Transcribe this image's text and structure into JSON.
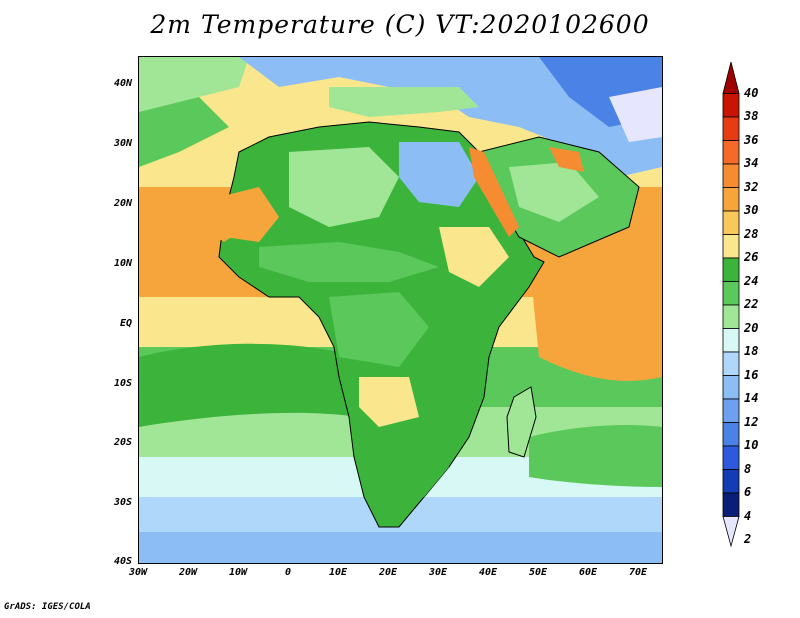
{
  "title": "2m Temperature (C) VT:2020102600",
  "footer": "GrADS: IGES/COLA",
  "map": {
    "region": "Africa and surrounding oceans",
    "lon_range": [
      -30,
      75
    ],
    "lat_range": [
      -40,
      45
    ],
    "y_ticks": [
      "40N",
      "30N",
      "20N",
      "10N",
      "EQ",
      "10S",
      "20S",
      "30S",
      "40S"
    ],
    "x_ticks": [
      "30W",
      "20W",
      "10W",
      "0",
      "10E",
      "20E",
      "30E",
      "40E",
      "50E",
      "60E",
      "70E"
    ]
  },
  "colorbar": {
    "levels": [
      "40",
      "38",
      "36",
      "34",
      "32",
      "30",
      "28",
      "26",
      "24",
      "22",
      "20",
      "18",
      "16",
      "14",
      "12",
      "10",
      "8",
      "6",
      "4",
      "2"
    ],
    "colors": [
      "#a00000",
      "#c81400",
      "#e63c14",
      "#f56a28",
      "#f58c32",
      "#f5a53c",
      "#f8c85a",
      "#fae68c",
      "#3cb43c",
      "#5ac85a",
      "#a0e696",
      "#d7f8f5",
      "#afd7fa",
      "#8cbef5",
      "#6ea0f0",
      "#4b82e6",
      "#2d5adc",
      "#143cb4",
      "#0a1e78",
      "#e6e6ff"
    ]
  },
  "colors": {
    "land_green": "#3cb43c",
    "ocean_warm": "#f8c85a",
    "ocean_hot": "#f5a53c",
    "ocean_cool": "#a0e696",
    "ocean_cold": "#afd7fa",
    "deep_cold": "#6ea0f0"
  }
}
